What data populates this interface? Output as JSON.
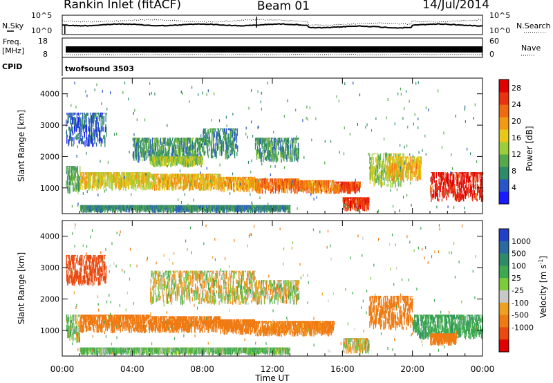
{
  "header": {
    "station": "Rankin Inlet (fitACF)",
    "beam": "Beam 01",
    "date": "14/Jul/2014"
  },
  "strip_panels": {
    "nsky_label": "N.Sky",
    "nsearch_label": "N.Search",
    "freq_label_top": "Freq.",
    "freq_label_units": "[MHz]",
    "nave_label": "Nave",
    "cpid_label": "CPID",
    "cpid_value": "twofsound 3503",
    "noise_left_ticks": [
      "10^5",
      "10^0"
    ],
    "noise_right_ticks": [
      "10^5",
      "10^0"
    ],
    "freq_left_ticks": [
      "18",
      "8"
    ],
    "nave_right_ticks": [
      "60",
      "0"
    ]
  },
  "chart_data": [
    {
      "type": "heatmap",
      "panel": "power",
      "ylabel": "Slant Range [km]",
      "xlabel": "",
      "x_ticks": [
        "00:00",
        "04:00",
        "08:00",
        "12:00",
        "16:00",
        "20:00",
        "00:00"
      ],
      "x_tick_hours": [
        0,
        4,
        8,
        12,
        16,
        20,
        24
      ],
      "xlim": [
        0,
        24
      ],
      "y_ticks": [
        1000,
        2000,
        3000,
        4000
      ],
      "ylim": [
        180,
        4500
      ],
      "colorbar": {
        "label": "Power [dB]",
        "ticks": [
          "4",
          "8",
          "12",
          "16",
          "20",
          "24",
          "28"
        ],
        "range": [
          0,
          30
        ],
        "colors": [
          "#1a1aff",
          "#2a55c8",
          "#2f8a6a",
          "#55a84c",
          "#9ccd3a",
          "#e8c818",
          "#f39a14",
          "#f06a10",
          "#ea3210",
          "#e00000"
        ]
      },
      "regions": [
        {
          "h0": 0.2,
          "h1": 2.5,
          "r0": 2300,
          "r1": 3400,
          "v": 5
        },
        {
          "h0": 0.2,
          "h1": 1.0,
          "r0": 800,
          "r1": 1700,
          "v": 10
        },
        {
          "h0": 1.0,
          "h1": 5.0,
          "r0": 900,
          "r1": 1500,
          "v": 16
        },
        {
          "h0": 5.0,
          "h1": 9.0,
          "r0": 900,
          "r1": 1450,
          "v": 18
        },
        {
          "h0": 9.0,
          "h1": 11.0,
          "r0": 850,
          "r1": 1350,
          "v": 19
        },
        {
          "h0": 11.0,
          "h1": 13.5,
          "r0": 800,
          "r1": 1300,
          "v": 22
        },
        {
          "h0": 13.5,
          "h1": 15.5,
          "r0": 800,
          "r1": 1250,
          "v": 21
        },
        {
          "h0": 15.5,
          "h1": 17.0,
          "r0": 800,
          "r1": 1200,
          "v": 24
        },
        {
          "h0": 16.0,
          "h1": 17.5,
          "r0": 250,
          "r1": 700,
          "v": 26
        },
        {
          "h0": 17.5,
          "h1": 19.5,
          "r0": 1000,
          "r1": 2100,
          "v": 14
        },
        {
          "h0": 18.5,
          "h1": 20.5,
          "r0": 1200,
          "r1": 2000,
          "v": 18
        },
        {
          "h0": 21.0,
          "h1": 24.0,
          "r0": 550,
          "r1": 1500,
          "v": 27
        },
        {
          "h0": 4.0,
          "h1": 8.0,
          "r0": 1800,
          "r1": 2600,
          "v": 9
        },
        {
          "h0": 8.0,
          "h1": 10.0,
          "r0": 1900,
          "r1": 2900,
          "v": 8
        },
        {
          "h0": 11.0,
          "h1": 13.5,
          "r0": 1800,
          "r1": 2600,
          "v": 9
        },
        {
          "h0": 1.0,
          "h1": 13.0,
          "r0": 200,
          "r1": 450,
          "v": 8
        },
        {
          "h0": 5.0,
          "h1": 8.0,
          "r0": 1650,
          "r1": 2000,
          "v": 13
        }
      ]
    },
    {
      "type": "heatmap",
      "panel": "velocity",
      "ylabel": "Slant Range [km]",
      "xlabel": "Time UT",
      "x_ticks": [
        "00:00",
        "04:00",
        "08:00",
        "12:00",
        "16:00",
        "20:00",
        "00:00"
      ],
      "x_tick_hours": [
        0,
        4,
        8,
        12,
        16,
        20,
        24
      ],
      "xlim": [
        0,
        24
      ],
      "y_ticks": [
        1000,
        2000,
        3000,
        4000
      ],
      "ylim": [
        180,
        4500
      ],
      "colorbar": {
        "label": "Velocity [m s^-1]",
        "ticks": [
          "1000",
          "500",
          "100",
          "25",
          "-25",
          "-100",
          "-500",
          "-1000"
        ],
        "colors": [
          "#2540c8",
          "#2a6aa0",
          "#2f8a6a",
          "#3ea850",
          "#7ecb3a",
          "#c8c8c8",
          "#f0a020",
          "#f07a12",
          "#ea4a10",
          "#e00000"
        ]
      },
      "regions": [
        {
          "h0": 0.2,
          "h1": 2.5,
          "r0": 2400,
          "r1": 3400,
          "v": -700
        },
        {
          "h0": 1.0,
          "h1": 5.0,
          "r0": 900,
          "r1": 1500,
          "v": -300
        },
        {
          "h0": 5.0,
          "h1": 9.0,
          "r0": 900,
          "r1": 1450,
          "v": -300
        },
        {
          "h0": 9.0,
          "h1": 11.0,
          "r0": 850,
          "r1": 1350,
          "v": -250
        },
        {
          "h0": 11.0,
          "h1": 15.5,
          "r0": 800,
          "r1": 1300,
          "v": -200
        },
        {
          "h0": 16.0,
          "h1": 17.5,
          "r0": 250,
          "r1": 750,
          "v": 0
        },
        {
          "h0": 17.5,
          "h1": 20.0,
          "r0": 1000,
          "r1": 2100,
          "v": -250
        },
        {
          "h0": 20.0,
          "h1": 24.0,
          "r0": 700,
          "r1": 1500,
          "v": 400
        },
        {
          "h0": 21.0,
          "h1": 22.5,
          "r0": 500,
          "r1": 900,
          "v": -300
        },
        {
          "h0": 5.0,
          "h1": 11.0,
          "r0": 1800,
          "r1": 2900,
          "v": 0
        },
        {
          "h0": 11.0,
          "h1": 13.5,
          "r0": 1800,
          "r1": 2600,
          "v": 0
        },
        {
          "h0": 0.2,
          "h1": 1.0,
          "r0": 600,
          "r1": 1500,
          "v": 80
        },
        {
          "h0": 1.0,
          "h1": 13.0,
          "r0": 200,
          "r1": 450,
          "v": 120
        }
      ]
    }
  ]
}
